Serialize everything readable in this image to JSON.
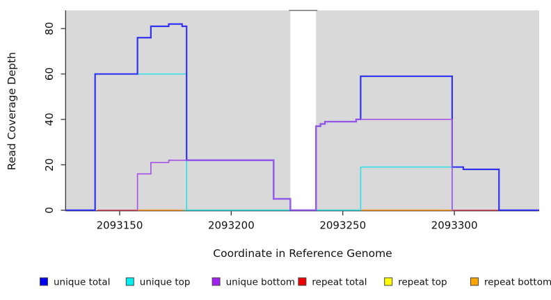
{
  "figure": {
    "background": "#ffffff",
    "panel_background": "#d9d9d9",
    "axis_color": "#333333"
  },
  "chart_data": {
    "type": "line",
    "subtype": "step-coverage",
    "title": "",
    "xlabel": "Coordinate in Reference Genome",
    "ylabel": "Read Coverage Depth",
    "xlim": [
      2093126,
      2093338
    ],
    "ylim": [
      0,
      88
    ],
    "x_ticks": [
      2093150,
      2093200,
      2093250,
      2093300
    ],
    "y_ticks": [
      0,
      20,
      40,
      60,
      80
    ],
    "grid": false,
    "legend_position": "bottom",
    "gap_region": {
      "x1": 2093226.5,
      "x2": 2093238,
      "fill": "#ffffff",
      "top_bar_color": "#8a8a8a"
    },
    "series": [
      {
        "name": "repeat total",
        "legend_color": "#ee0000",
        "line_color": "#d84a62",
        "width": 1.7,
        "parts": [
          [
            [
              2093140,
              2093320,
              0
            ]
          ]
        ]
      },
      {
        "name": "repeat top",
        "legend_color": "#ffff00",
        "line_color": "#8cc98c",
        "width": 1.7,
        "parts": [
          [
            [
              2093178,
              2093258,
              0
            ]
          ]
        ]
      },
      {
        "name": "repeat bottom",
        "legend_color": "#ffa500",
        "line_color": "#ff9d2e",
        "width": 1.7,
        "parts": [
          [
            [
              2093158,
              2093178,
              0
            ]
          ],
          [
            [
              2093258,
              2093299,
              0
            ]
          ]
        ]
      },
      {
        "name": "unique top",
        "legend_color": "#00eeee",
        "line_color": "#35dfe8",
        "width": 1.7,
        "parts": [
          [
            [
              2093126,
              2093139,
              0
            ],
            [
              2093139,
              2093180,
              60
            ],
            [
              2093180,
              2093258,
              0
            ],
            [
              2093258,
              2093299,
              19
            ],
            [
              2093299,
              2093299,
              0
            ]
          ]
        ]
      },
      {
        "name": "unique total",
        "legend_color": "#0000ee",
        "line_color": "#3232f0",
        "width": 2.2,
        "parts": [
          [
            [
              2093126,
              2093139,
              0
            ],
            [
              2093139,
              2093158,
              60
            ],
            [
              2093158,
              2093164,
              76
            ],
            [
              2093164,
              2093172,
              81
            ],
            [
              2093172,
              2093178,
              82
            ],
            [
              2093178,
              2093180,
              81
            ],
            [
              2093180,
              2093219,
              22
            ],
            [
              2093219,
              2093226.5,
              5
            ],
            [
              2093226.5,
              2093238,
              0
            ],
            [
              2093238,
              2093240,
              37
            ],
            [
              2093240,
              2093242,
              38
            ],
            [
              2093242,
              2093256,
              39
            ],
            [
              2093256,
              2093258,
              40
            ],
            [
              2093258,
              2093299,
              59
            ],
            [
              2093299,
              2093304,
              19
            ],
            [
              2093304,
              2093320,
              18
            ],
            [
              2093320,
              2093338,
              0
            ]
          ]
        ]
      },
      {
        "name": "unique bottom",
        "legend_color": "#a020f0",
        "line_color": "#a557e8",
        "width": 1.7,
        "parts": [
          [
            [
              2093158,
              2093158,
              0
            ],
            [
              2093158,
              2093164,
              16
            ],
            [
              2093164,
              2093172,
              21
            ],
            [
              2093172,
              2093219,
              22
            ],
            [
              2093219,
              2093226.5,
              5
            ],
            [
              2093226.5,
              2093238,
              0
            ],
            [
              2093238,
              2093240,
              37
            ],
            [
              2093240,
              2093242,
              38
            ],
            [
              2093242,
              2093256,
              39
            ],
            [
              2093256,
              2093299,
              40
            ],
            [
              2093299,
              2093299,
              0
            ]
          ]
        ]
      }
    ]
  },
  "legend": {
    "items": [
      {
        "label": "unique total",
        "color": "#0000ee"
      },
      {
        "label": "unique top",
        "color": "#00eeee"
      },
      {
        "label": "unique bottom",
        "color": "#a020f0"
      },
      {
        "label": "repeat total",
        "color": "#ee0000"
      },
      {
        "label": "repeat top",
        "color": "#ffff00"
      },
      {
        "label": "repeat bottom",
        "color": "#ffa500"
      }
    ]
  }
}
